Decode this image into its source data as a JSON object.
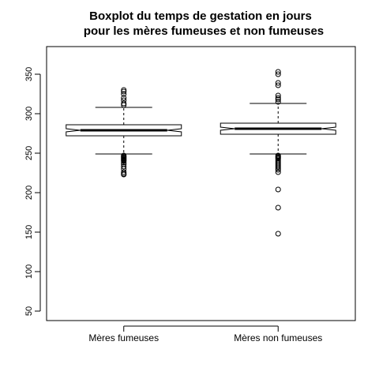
{
  "chart_data": {
    "type": "boxplot",
    "title_line1": "Boxplot du temps de gestation en jours",
    "title_line2": "pour les mères fumeuses et non fumeuses",
    "xlabel": "",
    "ylabel": "",
    "ylim": [
      38,
      385
    ],
    "yticks": [
      50,
      100,
      150,
      200,
      250,
      300,
      350
    ],
    "notched": true,
    "grid": false,
    "categories": [
      "Mères fumeuses",
      "Mères non fumeuses"
    ],
    "boxes": [
      {
        "q1": 272,
        "median": 279,
        "q3": 286,
        "notch_low": 277,
        "notch_high": 281,
        "whisker_low": 249,
        "whisker_high": 308,
        "outliers": [
          330,
          328,
          325,
          320,
          317,
          313,
          311,
          247,
          246,
          245,
          244,
          243,
          242,
          241,
          240,
          238,
          236,
          233,
          230,
          226,
          224,
          223
        ]
      },
      {
        "q1": 274,
        "median": 281,
        "q3": 288,
        "notch_low": 279,
        "notch_high": 283,
        "whisker_low": 249,
        "whisker_high": 313,
        "outliers": [
          353,
          350,
          339,
          336,
          323,
          320,
          318,
          315,
          247,
          246,
          245,
          244,
          243,
          241,
          239,
          237,
          235,
          233,
          231,
          229,
          226,
          204,
          181,
          148
        ]
      }
    ]
  }
}
